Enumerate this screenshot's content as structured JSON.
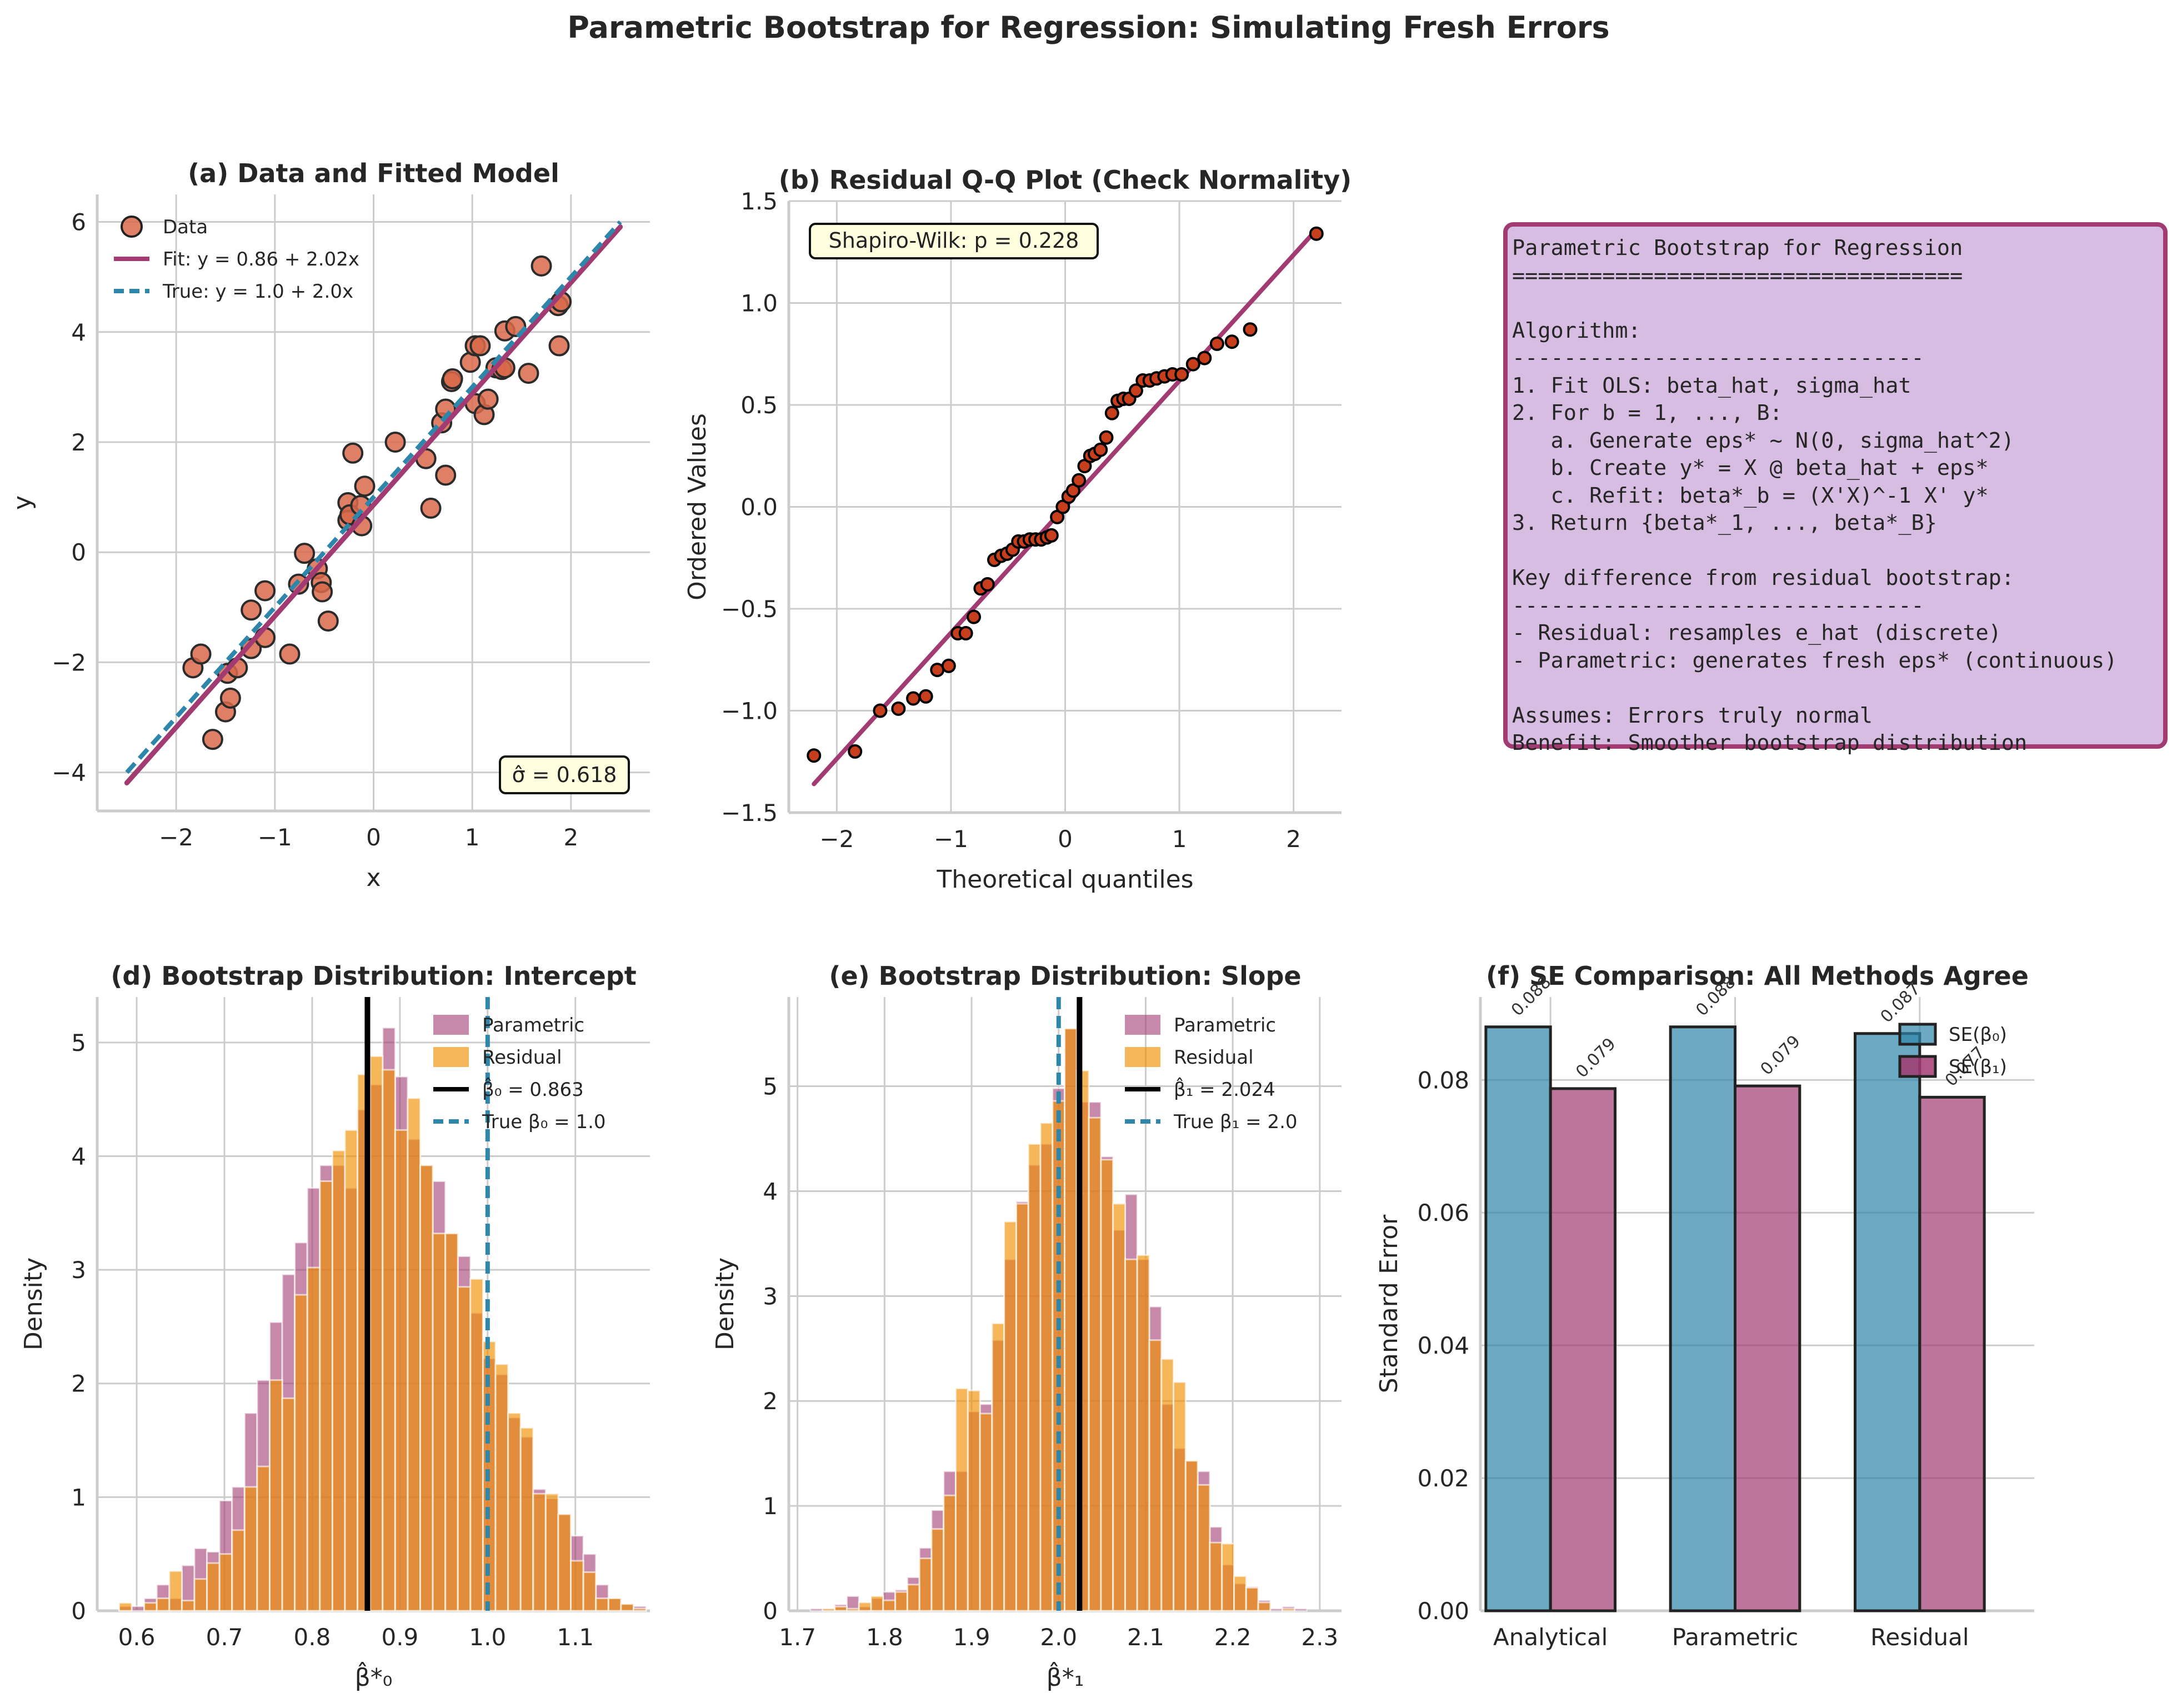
{
  "suptitle": "Parametric Bootstrap for Regression: Simulating Fresh Errors",
  "colors": {
    "scatter_fill": "#d9684a",
    "qq_fill": "#c73e1d",
    "fit_line": "#a23b72",
    "true_line": "#2e86ab",
    "param_hist": "#a23b72",
    "resid_hist": "#f18f01",
    "se_b0": "#2e86ab",
    "se_b1": "#a23b72",
    "annot_bg": "#ffffe0",
    "textbox_bg": "#d7bde2",
    "textbox_border": "#a23b72",
    "grid": "#cccccc"
  },
  "textbox": {
    "lines": [
      "Parametric Bootstrap for Regression",
      "===================================",
      "",
      "Algorithm:",
      "--------------------------------",
      "1. Fit OLS: beta_hat, sigma_hat",
      "2. For b = 1, ..., B:",
      "   a. Generate eps* ~ N(0, sigma_hat^2)",
      "   b. Create y* = X @ beta_hat + eps*",
      "   c. Refit: beta*_b = (X'X)^-1 X' y*",
      "3. Return {beta*_1, ..., beta*_B}",
      "",
      "Key difference from residual bootstrap:",
      "--------------------------------",
      "- Residual: resamples e_hat (discrete)",
      "- Parametric: generates fresh eps* (continuous)",
      "",
      "Assumes: Errors truly normal",
      "Benefit: Smoother bootstrap distribution"
    ]
  },
  "chart_data": [
    {
      "id": "a",
      "type": "scatter",
      "title": "(a) Data and Fitted Model",
      "xlabel": "x",
      "ylabel": "y",
      "xlim": [
        -2.8,
        2.8
      ],
      "ylim": [
        -4.7,
        6.5
      ],
      "xticks": [
        -2,
        -1,
        0,
        1,
        2
      ],
      "xtick_labels": [
        "−2",
        "−1",
        "0",
        "1",
        "2"
      ],
      "yticks": [
        -4,
        -2,
        0,
        2,
        4,
        6
      ],
      "ytick_labels": [
        "−4",
        "−2",
        "0",
        "2",
        "4",
        "6"
      ],
      "grid": true,
      "legend_position": "top-left",
      "legend": [
        "Data",
        "Fit: y = 0.86 + 2.02x",
        "True: y = 1.0 + 2.0x"
      ],
      "points": [
        [
          -1.83,
          -2.1
        ],
        [
          -1.75,
          -1.85
        ],
        [
          -1.63,
          -3.4
        ],
        [
          -1.5,
          -2.9
        ],
        [
          -1.48,
          -2.2
        ],
        [
          -1.45,
          -2.65
        ],
        [
          -1.38,
          -2.1
        ],
        [
          -1.24,
          -1.05
        ],
        [
          -1.24,
          -1.75
        ],
        [
          -1.1,
          -0.7
        ],
        [
          -1.1,
          -1.55
        ],
        [
          -0.85,
          -1.85
        ],
        [
          -0.76,
          -0.58
        ],
        [
          -0.7,
          -0.02
        ],
        [
          -0.57,
          -0.3
        ],
        [
          -0.53,
          -0.55
        ],
        [
          -0.52,
          -0.72
        ],
        [
          -0.46,
          -1.25
        ],
        [
          -0.26,
          0.9
        ],
        [
          -0.26,
          0.58
        ],
        [
          -0.24,
          0.68
        ],
        [
          -0.21,
          1.8
        ],
        [
          -0.13,
          0.85
        ],
        [
          -0.12,
          0.48
        ],
        [
          -0.09,
          1.2
        ],
        [
          0.22,
          2.0
        ],
        [
          0.53,
          1.7
        ],
        [
          0.58,
          0.8
        ],
        [
          0.69,
          2.35
        ],
        [
          0.73,
          2.6
        ],
        [
          0.73,
          1.4
        ],
        [
          0.79,
          3.1
        ],
        [
          0.8,
          3.15
        ],
        [
          0.98,
          3.45
        ],
        [
          1.03,
          3.75
        ],
        [
          1.08,
          3.75
        ],
        [
          1.03,
          2.7
        ],
        [
          1.12,
          2.5
        ],
        [
          1.16,
          2.78
        ],
        [
          1.24,
          3.35
        ],
        [
          1.3,
          3.32
        ],
        [
          1.33,
          3.35
        ],
        [
          1.33,
          4.02
        ],
        [
          1.44,
          4.1
        ],
        [
          1.57,
          3.25
        ],
        [
          1.7,
          5.2
        ],
        [
          1.87,
          4.48
        ],
        [
          1.88,
          3.75
        ],
        [
          1.9,
          4.55
        ]
      ],
      "fit_line": {
        "intercept": 0.86,
        "slope": 2.02,
        "x_range": [
          -2.5,
          2.5
        ]
      },
      "true_line": {
        "intercept": 1.0,
        "slope": 2.0,
        "x_range": [
          -2.5,
          2.5
        ]
      },
      "annotation": "σ̂ = 0.618"
    },
    {
      "id": "b",
      "type": "scatter",
      "title": "(b) Residual Q-Q Plot (Check Normality)",
      "xlabel": "Theoretical quantiles",
      "ylabel": "Ordered Values",
      "xlim": [
        -2.42,
        2.42
      ],
      "ylim": [
        -1.5,
        1.5
      ],
      "xticks": [
        -2,
        -1,
        0,
        1,
        2
      ],
      "xtick_labels": [
        "−2",
        "−1",
        "0",
        "1",
        "2"
      ],
      "yticks": [
        -1.5,
        -1.0,
        -0.5,
        0.0,
        0.5,
        1.0,
        1.5
      ],
      "ytick_labels": [
        "−1.5",
        "−1.0",
        "−0.5",
        "0.0",
        "0.5",
        "1.0",
        "1.5"
      ],
      "grid": true,
      "points": [
        [
          -2.2,
          -1.22
        ],
        [
          -1.84,
          -1.2
        ],
        [
          -1.62,
          -1.0
        ],
        [
          -1.46,
          -0.99
        ],
        [
          -1.33,
          -0.94
        ],
        [
          -1.22,
          -0.93
        ],
        [
          -1.12,
          -0.8
        ],
        [
          -1.02,
          -0.78
        ],
        [
          -0.94,
          -0.62
        ],
        [
          -0.87,
          -0.62
        ],
        [
          -0.8,
          -0.54
        ],
        [
          -0.74,
          -0.4
        ],
        [
          -0.68,
          -0.38
        ],
        [
          -0.62,
          -0.26
        ],
        [
          -0.56,
          -0.24
        ],
        [
          -0.51,
          -0.23
        ],
        [
          -0.46,
          -0.21
        ],
        [
          -0.41,
          -0.17
        ],
        [
          -0.36,
          -0.17
        ],
        [
          -0.31,
          -0.16
        ],
        [
          -0.26,
          -0.16
        ],
        [
          -0.21,
          -0.16
        ],
        [
          -0.16,
          -0.15
        ],
        [
          -0.12,
          -0.14
        ],
        [
          -0.07,
          -0.05
        ],
        [
          -0.02,
          0.0
        ],
        [
          0.03,
          0.05
        ],
        [
          0.07,
          0.08
        ],
        [
          0.12,
          0.13
        ],
        [
          0.17,
          0.2
        ],
        [
          0.22,
          0.25
        ],
        [
          0.26,
          0.26
        ],
        [
          0.31,
          0.28
        ],
        [
          0.36,
          0.34
        ],
        [
          0.41,
          0.46
        ],
        [
          0.46,
          0.52
        ],
        [
          0.51,
          0.53
        ],
        [
          0.56,
          0.53
        ],
        [
          0.62,
          0.57
        ],
        [
          0.68,
          0.62
        ],
        [
          0.74,
          0.62
        ],
        [
          0.8,
          0.63
        ],
        [
          0.87,
          0.64
        ],
        [
          0.94,
          0.65
        ],
        [
          1.02,
          0.65
        ],
        [
          1.12,
          0.7
        ],
        [
          1.22,
          0.73
        ],
        [
          1.33,
          0.8
        ],
        [
          1.46,
          0.81
        ],
        [
          1.62,
          0.87
        ],
        [
          2.2,
          1.34
        ]
      ],
      "ref_line": {
        "intercept": 0.0,
        "slope": 0.618,
        "x_range": [
          -2.2,
          2.2
        ]
      },
      "annotation": "Shapiro-Wilk: p = 0.228"
    },
    {
      "id": "d",
      "type": "bar",
      "subtype": "histogram",
      "title": "(d) Bootstrap Distribution: Intercept",
      "xlabel": "β̂*₀",
      "ylabel": "Density",
      "xlim": [
        0.555,
        1.185
      ],
      "ylim": [
        0,
        5.4
      ],
      "xticks": [
        0.6,
        0.7,
        0.8,
        0.9,
        1.0,
        1.1
      ],
      "xtick_labels": [
        "0.6",
        "0.7",
        "0.8",
        "0.9",
        "1.0",
        "1.1"
      ],
      "yticks": [
        0,
        1,
        2,
        3,
        4,
        5
      ],
      "ytick_labels": [
        "0",
        "1",
        "2",
        "3",
        "4",
        "5"
      ],
      "grid": true,
      "legend_position": "top-right",
      "bin_start": 0.58,
      "bin_width": 0.0143,
      "series": [
        {
          "name": "Parametric",
          "values": [
            0.04,
            0.04,
            0.11,
            0.23,
            0.11,
            0.4,
            0.55,
            0.52,
            0.97,
            1.09,
            1.74,
            2.03,
            2.54,
            2.96,
            3.24,
            3.72,
            3.92,
            3.92,
            3.72,
            4.41,
            4.63,
            5.13,
            4.7,
            4.15,
            3.92,
            3.78,
            3.32,
            3.12,
            2.62,
            2.22,
            2.08,
            1.7,
            1.53,
            1.07,
            0.99,
            0.85,
            0.66,
            0.5,
            0.23,
            0.11,
            0.06,
            0.04
          ]
        },
        {
          "name": "Residual",
          "values": [
            0.07,
            0.0,
            0.07,
            0.11,
            0.35,
            0.09,
            0.28,
            0.42,
            0.5,
            0.71,
            1.09,
            1.27,
            2.03,
            1.87,
            2.78,
            3.02,
            3.78,
            4.05,
            4.23,
            4.72,
            4.88,
            4.76,
            4.23,
            4.51,
            3.92,
            3.32,
            3.32,
            2.85,
            2.92,
            2.37,
            2.17,
            1.74,
            1.61,
            1.03,
            1.03,
            0.85,
            0.44,
            0.34,
            0.11,
            0.11,
            0.06,
            0.02
          ]
        }
      ],
      "vlines": [
        {
          "label": "β̂₀ = 0.863",
          "x": 0.863,
          "style": "solid",
          "color": "#000000"
        },
        {
          "label": "True β₀ = 1.0",
          "x": 1.0,
          "style": "dashed",
          "color": "#2e86ab"
        }
      ]
    },
    {
      "id": "e",
      "type": "bar",
      "subtype": "histogram",
      "title": "(e) Bootstrap Distribution: Slope",
      "xlabel": "β̂*₁",
      "ylabel": "Density",
      "xlim": [
        1.69,
        2.325
      ],
      "ylim": [
        0,
        5.85
      ],
      "xticks": [
        1.7,
        1.8,
        1.9,
        2.0,
        2.1,
        2.2,
        2.3
      ],
      "xtick_labels": [
        "1.7",
        "1.8",
        "1.9",
        "2.0",
        "2.1",
        "2.2",
        "2.3"
      ],
      "yticks": [
        0,
        1,
        2,
        3,
        4,
        5
      ],
      "ytick_labels": [
        "0",
        "1",
        "2",
        "3",
        "4",
        "5"
      ],
      "grid": true,
      "legend_position": "top-right",
      "bin_start": 1.715,
      "bin_width": 0.0139,
      "series": [
        {
          "name": "Parametric",
          "values": [
            0.02,
            0.02,
            0.06,
            0.14,
            0.04,
            0.12,
            0.18,
            0.2,
            0.32,
            0.6,
            0.96,
            1.33,
            1.33,
            1.9,
            1.97,
            2.58,
            3.35,
            3.9,
            4.25,
            4.45,
            4.98,
            5.55,
            4.85,
            4.85,
            4.33,
            3.63,
            3.97,
            3.35,
            2.9,
            1.97,
            1.55,
            1.43,
            1.33,
            0.8,
            0.44,
            0.26,
            0.23,
            0.1,
            0.02,
            0.04,
            0.02
          ]
        },
        {
          "name": "Residual",
          "values": [
            0.0,
            0.02,
            0.04,
            0.02,
            0.08,
            0.14,
            0.1,
            0.18,
            0.25,
            0.5,
            0.78,
            1.1,
            2.12,
            2.1,
            1.88,
            2.74,
            3.71,
            3.88,
            4.45,
            4.65,
            4.86,
            5.55,
            5.15,
            4.7,
            4.3,
            3.88,
            3.35,
            3.39,
            2.58,
            2.4,
            2.18,
            1.43,
            1.2,
            0.65,
            0.64,
            0.33,
            0.22,
            0.08,
            0.0,
            0.02,
            0.0
          ]
        }
      ],
      "vlines": [
        {
          "label": "β̂₁ = 2.024",
          "x": 2.024,
          "style": "solid",
          "color": "#000000"
        },
        {
          "label": "True β₁ = 2.0",
          "x": 2.0,
          "style": "dashed",
          "color": "#2e86ab"
        }
      ]
    },
    {
      "id": "f",
      "type": "bar",
      "title": "(f) SE Comparison: All Methods Agree",
      "xlabel": "",
      "ylabel": "Standard Error",
      "ylim": [
        0,
        0.0925
      ],
      "yticks": [
        0.0,
        0.02,
        0.04,
        0.06,
        0.08
      ],
      "ytick_labels": [
        "0.00",
        "0.02",
        "0.04",
        "0.06",
        "0.08"
      ],
      "grid": true,
      "legend_position": "top-right",
      "categories": [
        "Analytical",
        "Parametric",
        "Residual"
      ],
      "series": [
        {
          "name": "SE(β₀)",
          "values": [
            0.088,
            0.088,
            0.087
          ],
          "labels": [
            "0.088",
            "0.088",
            "0.087"
          ]
        },
        {
          "name": "SE(β₁)",
          "values": [
            0.0787,
            0.0791,
            0.0774
          ],
          "labels": [
            "0.079",
            "0.079",
            "0.077"
          ]
        }
      ]
    }
  ]
}
